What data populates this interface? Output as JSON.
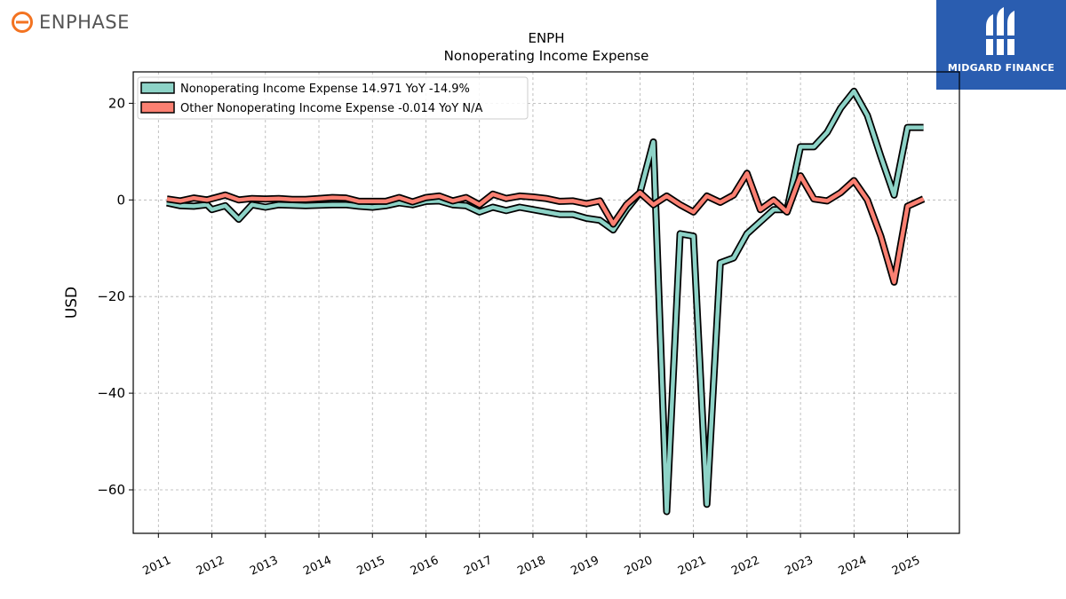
{
  "header": {
    "company_logo_text": "ENPHASE",
    "partner_logo_text": "MIDGARD FINANCE"
  },
  "colors": {
    "series1": "#8dd3c7",
    "series2": "#fb8072",
    "outline": "#000000",
    "partner_bg": "#2a5db0",
    "enphase_orange": "#f37321"
  },
  "chart_data": {
    "type": "line",
    "title": "ENPH",
    "subtitle": "Nonoperating Income Expense",
    "ylabel": "USD",
    "xlabel": "",
    "ylim": [
      -69,
      26.5
    ],
    "xlim": [
      2010.53,
      2025.97
    ],
    "yticks": [
      20,
      0,
      -20,
      -40,
      -60
    ],
    "ytick_labels": [
      "20",
      "0",
      "−20",
      "−40",
      "−60"
    ],
    "xticks": [
      2011,
      2012,
      2013,
      2014,
      2015,
      2016,
      2017,
      2018,
      2019,
      2020,
      2021,
      2022,
      2023,
      2024,
      2025
    ],
    "xtick_labels": [
      "2011",
      "2012",
      "2013",
      "2014",
      "2015",
      "2016",
      "2017",
      "2018",
      "2019",
      "2020",
      "2021",
      "2022",
      "2023",
      "2024",
      "2025"
    ],
    "grid": true,
    "legend_position": "top-left",
    "series": [
      {
        "name": "Nonoperating Income Expense",
        "legend_label": "Nonoperating Income Expense  14.971 YoY -14.9%",
        "color": "#8dd3c7",
        "points": [
          [
            2011.16,
            -0.6
          ],
          [
            2011.41,
            -1.2
          ],
          [
            2011.66,
            -1.3
          ],
          [
            2011.91,
            -1.0
          ],
          [
            2012.0,
            -2.0
          ],
          [
            2012.25,
            -1.2
          ],
          [
            2012.5,
            -4.0
          ],
          [
            2012.75,
            -1.0
          ],
          [
            2013.0,
            -1.5
          ],
          [
            2013.25,
            -1.0
          ],
          [
            2013.5,
            -1.1
          ],
          [
            2013.75,
            -1.2
          ],
          [
            2014.0,
            -1.1
          ],
          [
            2014.25,
            -1.0
          ],
          [
            2014.5,
            -1.0
          ],
          [
            2014.75,
            -1.3
          ],
          [
            2015.0,
            -1.5
          ],
          [
            2015.25,
            -1.2
          ],
          [
            2015.5,
            -0.6
          ],
          [
            2015.75,
            -1.0
          ],
          [
            2016.0,
            -0.3
          ],
          [
            2016.25,
            -0.2
          ],
          [
            2016.5,
            -1.0
          ],
          [
            2016.75,
            -1.2
          ],
          [
            2017.0,
            -2.5
          ],
          [
            2017.25,
            -1.5
          ],
          [
            2017.5,
            -2.2
          ],
          [
            2017.75,
            -1.5
          ],
          [
            2018.0,
            -2.0
          ],
          [
            2018.25,
            -2.5
          ],
          [
            2018.5,
            -3.0
          ],
          [
            2018.75,
            -3.0
          ],
          [
            2019.0,
            -3.8
          ],
          [
            2019.25,
            -4.2
          ],
          [
            2019.5,
            -6.2
          ],
          [
            2019.75,
            -2.0
          ],
          [
            2020.0,
            1.5
          ],
          [
            2020.25,
            12.0
          ],
          [
            2020.5,
            -64.5
          ],
          [
            2020.75,
            -7.0
          ],
          [
            2021.0,
            -7.5
          ],
          [
            2021.25,
            -63.0
          ],
          [
            2021.5,
            -13.0
          ],
          [
            2021.75,
            -12.0
          ],
          [
            2022.0,
            -7.0
          ],
          [
            2022.25,
            -4.5
          ],
          [
            2022.5,
            -2.0
          ],
          [
            2022.75,
            -2.0
          ],
          [
            2023.0,
            11.0
          ],
          [
            2023.25,
            11.0
          ],
          [
            2023.5,
            14.0
          ],
          [
            2023.75,
            19.0
          ],
          [
            2024.0,
            22.5
          ],
          [
            2024.25,
            17.5
          ],
          [
            2024.5,
            9.0
          ],
          [
            2024.75,
            1.0
          ],
          [
            2025.0,
            15.0
          ],
          [
            2025.3,
            15.0
          ]
        ]
      },
      {
        "name": "Other Nonoperating Income Expense",
        "legend_label": "Other Nonoperating Income Expense  -0.014 YoY N/A",
        "color": "#fb8072",
        "points": [
          [
            2011.16,
            0.2
          ],
          [
            2011.41,
            -0.2
          ],
          [
            2011.66,
            0.4
          ],
          [
            2011.91,
            0.0
          ],
          [
            2012.25,
            1.0
          ],
          [
            2012.5,
            0.0
          ],
          [
            2012.75,
            0.3
          ],
          [
            2013.0,
            0.2
          ],
          [
            2013.25,
            0.3
          ],
          [
            2013.5,
            0.1
          ],
          [
            2013.75,
            0.1
          ],
          [
            2014.0,
            0.3
          ],
          [
            2014.25,
            0.5
          ],
          [
            2014.5,
            0.4
          ],
          [
            2014.75,
            -0.3
          ],
          [
            2015.0,
            -0.3
          ],
          [
            2015.25,
            -0.3
          ],
          [
            2015.5,
            0.5
          ],
          [
            2015.75,
            -0.4
          ],
          [
            2016.0,
            0.5
          ],
          [
            2016.25,
            0.8
          ],
          [
            2016.5,
            -0.2
          ],
          [
            2016.75,
            0.5
          ],
          [
            2017.0,
            -1.0
          ],
          [
            2017.25,
            1.2
          ],
          [
            2017.5,
            0.3
          ],
          [
            2017.75,
            0.8
          ],
          [
            2018.0,
            0.6
          ],
          [
            2018.25,
            0.3
          ],
          [
            2018.5,
            -0.3
          ],
          [
            2018.75,
            -0.2
          ],
          [
            2019.0,
            -0.8
          ],
          [
            2019.25,
            -0.2
          ],
          [
            2019.5,
            -5.0
          ],
          [
            2019.75,
            -1.0
          ],
          [
            2020.0,
            1.5
          ],
          [
            2020.25,
            -1.0
          ],
          [
            2020.5,
            0.8
          ],
          [
            2020.75,
            -1.0
          ],
          [
            2021.0,
            -2.5
          ],
          [
            2021.25,
            0.8
          ],
          [
            2021.5,
            -0.5
          ],
          [
            2021.75,
            1.0
          ],
          [
            2022.0,
            5.5
          ],
          [
            2022.25,
            -2.0
          ],
          [
            2022.5,
            0.0
          ],
          [
            2022.75,
            -2.5
          ],
          [
            2023.0,
            5.0
          ],
          [
            2023.25,
            0.2
          ],
          [
            2023.5,
            -0.2
          ],
          [
            2023.75,
            1.5
          ],
          [
            2024.0,
            4.0
          ],
          [
            2024.25,
            0.0
          ],
          [
            2024.5,
            -7.5
          ],
          [
            2024.75,
            -17.0
          ],
          [
            2025.0,
            -1.3
          ],
          [
            2025.3,
            0.2
          ]
        ]
      }
    ]
  }
}
